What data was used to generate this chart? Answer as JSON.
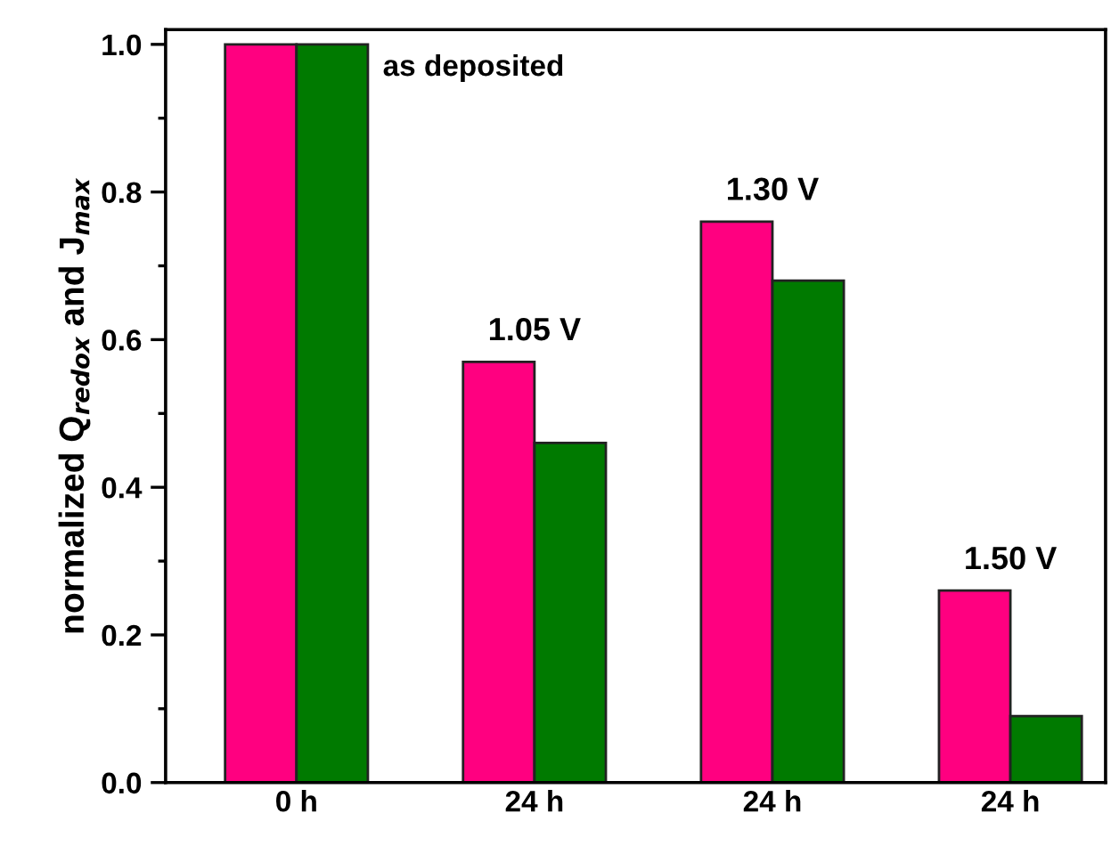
{
  "chart_data": {
    "type": "bar",
    "ylabel": "normalized Q$_{redox}$ and J$_{max}$",
    "categories": [
      "0 h",
      "24 h",
      "24 h",
      "24 h"
    ],
    "series": [
      {
        "color": "#ff0080",
        "values": [
          1.0,
          0.57,
          0.76,
          0.26
        ]
      },
      {
        "color": "#007a00",
        "values": [
          1.0,
          0.46,
          0.68,
          0.09
        ]
      }
    ],
    "ylim": [
      0,
      1.02
    ],
    "yticks": [
      {
        "value": 0,
        "label": "0.0"
      },
      0.2,
      0.4,
      0.6,
      0.8,
      {
        "value": 1,
        "label": "1.0"
      }
    ],
    "annotations": [
      "as deposited",
      "1.05 V",
      "1.30 V",
      "1.50 V"
    ],
    "grid": false,
    "legend": false
  }
}
